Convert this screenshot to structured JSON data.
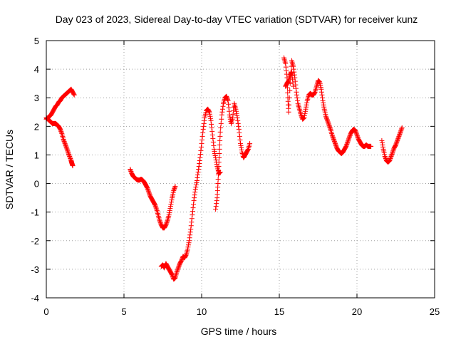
{
  "chart_data": {
    "type": "scatter",
    "title": "Day 023 of 2023, Sidereal Day-to-day VTEC variation (SDTVAR) for receiver kunz",
    "xlabel": "GPS time / hours",
    "ylabel": "SDTVAR / TECUs",
    "xlim": [
      0,
      25
    ],
    "ylim": [
      -4,
      5
    ],
    "xticks": [
      "0",
      "5",
      "10",
      "15",
      "20",
      "25"
    ],
    "yticks": [
      "-4",
      "-3",
      "-2",
      "-1",
      "0",
      "1",
      "2",
      "3",
      "4",
      "5"
    ],
    "grid": true,
    "marker": "plus",
    "color": "#ff0000",
    "segments": [
      [
        [
          0.0,
          2.25
        ],
        [
          0.1,
          2.3
        ],
        [
          0.2,
          2.35
        ],
        [
          0.3,
          2.4
        ],
        [
          0.4,
          2.5
        ],
        [
          0.5,
          2.6
        ],
        [
          0.6,
          2.7
        ],
        [
          0.7,
          2.75
        ],
        [
          0.8,
          2.85
        ],
        [
          0.9,
          2.9
        ],
        [
          1.0,
          3.0
        ],
        [
          1.1,
          3.05
        ],
        [
          1.2,
          3.1
        ],
        [
          1.3,
          3.15
        ],
        [
          1.4,
          3.2
        ],
        [
          1.5,
          3.25
        ],
        [
          1.6,
          3.3
        ],
        [
          1.7,
          3.2
        ],
        [
          1.8,
          3.1
        ]
      ],
      [
        [
          0.0,
          2.3
        ],
        [
          0.1,
          2.25
        ],
        [
          0.2,
          2.2
        ],
        [
          0.3,
          2.15
        ],
        [
          0.4,
          2.1
        ],
        [
          0.5,
          2.1
        ],
        [
          0.6,
          2.1
        ],
        [
          0.7,
          2.05
        ],
        [
          0.8,
          2.0
        ],
        [
          0.9,
          1.9
        ],
        [
          1.0,
          1.75
        ],
        [
          1.1,
          1.55
        ],
        [
          1.2,
          1.4
        ],
        [
          1.3,
          1.25
        ],
        [
          1.4,
          1.1
        ],
        [
          1.5,
          0.95
        ],
        [
          1.6,
          0.8
        ],
        [
          1.65,
          0.7
        ],
        [
          1.7,
          0.62
        ]
      ],
      [
        [
          5.4,
          0.5
        ],
        [
          5.5,
          0.35
        ],
        [
          5.6,
          0.25
        ],
        [
          5.7,
          0.2
        ],
        [
          5.8,
          0.15
        ],
        [
          5.9,
          0.12
        ],
        [
          6.0,
          0.12
        ],
        [
          6.1,
          0.15
        ],
        [
          6.2,
          0.12
        ],
        [
          6.3,
          0.05
        ],
        [
          6.4,
          -0.05
        ],
        [
          6.5,
          -0.15
        ],
        [
          6.6,
          -0.3
        ],
        [
          6.7,
          -0.45
        ],
        [
          6.8,
          -0.55
        ],
        [
          6.9,
          -0.65
        ],
        [
          7.0,
          -0.75
        ],
        [
          7.1,
          -0.9
        ],
        [
          7.2,
          -1.1
        ],
        [
          7.3,
          -1.3
        ],
        [
          7.4,
          -1.45
        ],
        [
          7.5,
          -1.55
        ],
        [
          7.6,
          -1.55
        ],
        [
          7.7,
          -1.45
        ],
        [
          7.8,
          -1.3
        ],
        [
          7.9,
          -1.1
        ],
        [
          8.0,
          -0.8
        ],
        [
          8.1,
          -0.5
        ],
        [
          8.2,
          -0.25
        ],
        [
          8.3,
          -0.1
        ]
      ],
      [
        [
          7.4,
          -2.9
        ],
        [
          7.5,
          -2.85
        ],
        [
          7.6,
          -2.95
        ],
        [
          7.7,
          -2.8
        ],
        [
          7.8,
          -2.9
        ],
        [
          7.9,
          -3.0
        ],
        [
          8.0,
          -3.1
        ],
        [
          8.1,
          -3.2
        ],
        [
          8.2,
          -3.35
        ],
        [
          8.3,
          -3.3
        ],
        [
          8.4,
          -3.1
        ],
        [
          8.5,
          -2.95
        ],
        [
          8.6,
          -2.8
        ],
        [
          8.7,
          -2.7
        ],
        [
          8.8,
          -2.55
        ],
        [
          8.9,
          -2.6
        ],
        [
          9.0,
          -2.5
        ],
        [
          9.1,
          -2.3
        ],
        [
          9.2,
          -2.0
        ],
        [
          9.3,
          -1.6
        ],
        [
          9.4,
          -1.1
        ],
        [
          9.5,
          -0.6
        ],
        [
          9.6,
          -0.2
        ],
        [
          9.7,
          0.1
        ],
        [
          9.8,
          0.5
        ],
        [
          9.9,
          0.9
        ],
        [
          10.0,
          1.4
        ],
        [
          10.1,
          1.9
        ],
        [
          10.2,
          2.3
        ],
        [
          10.3,
          2.55
        ],
        [
          10.4,
          2.6
        ],
        [
          10.5,
          2.5
        ],
        [
          10.6,
          2.2
        ],
        [
          10.7,
          1.7
        ],
        [
          10.8,
          1.2
        ],
        [
          10.9,
          0.9
        ],
        [
          11.0,
          0.6
        ],
        [
          11.1,
          0.35
        ],
        [
          11.2,
          0.4
        ]
      ],
      [
        [
          10.9,
          -0.9
        ],
        [
          11.0,
          -0.5
        ],
        [
          11.05,
          0.0
        ],
        [
          11.1,
          0.6
        ],
        [
          11.15,
          1.2
        ],
        [
          11.2,
          1.8
        ],
        [
          11.3,
          2.4
        ],
        [
          11.4,
          2.8
        ],
        [
          11.5,
          3.0
        ],
        [
          11.6,
          3.05
        ],
        [
          11.7,
          2.9
        ],
        [
          11.8,
          2.4
        ],
        [
          11.9,
          2.1
        ],
        [
          12.0,
          2.3
        ],
        [
          12.1,
          2.8
        ],
        [
          12.2,
          2.6
        ],
        [
          12.3,
          2.3
        ],
        [
          12.4,
          1.9
        ],
        [
          12.5,
          1.4
        ],
        [
          12.6,
          1.1
        ],
        [
          12.7,
          0.9
        ],
        [
          12.8,
          1.0
        ],
        [
          12.9,
          1.1
        ],
        [
          13.0,
          1.2
        ],
        [
          13.1,
          1.4
        ]
      ],
      [
        [
          15.3,
          4.4
        ],
        [
          15.4,
          4.2
        ],
        [
          15.5,
          3.7
        ],
        [
          15.55,
          3.0
        ],
        [
          15.6,
          2.5
        ],
        [
          15.7,
          3.5
        ],
        [
          15.8,
          4.3
        ],
        [
          15.9,
          4.1
        ],
        [
          16.0,
          3.7
        ],
        [
          16.1,
          3.2
        ],
        [
          16.2,
          2.8
        ],
        [
          16.3,
          2.6
        ],
        [
          16.4,
          2.4
        ],
        [
          16.5,
          2.25
        ],
        [
          16.6,
          2.3
        ],
        [
          16.7,
          2.6
        ],
        [
          16.8,
          2.9
        ],
        [
          16.9,
          3.1
        ],
        [
          17.0,
          3.15
        ],
        [
          17.1,
          3.1
        ],
        [
          17.2,
          3.1
        ],
        [
          17.3,
          3.2
        ],
        [
          17.4,
          3.4
        ],
        [
          17.5,
          3.6
        ],
        [
          17.6,
          3.55
        ],
        [
          17.7,
          3.3
        ],
        [
          17.8,
          2.9
        ],
        [
          17.9,
          2.6
        ],
        [
          18.0,
          2.35
        ],
        [
          18.1,
          2.2
        ],
        [
          18.2,
          2.05
        ],
        [
          18.3,
          1.9
        ],
        [
          18.4,
          1.7
        ],
        [
          18.5,
          1.55
        ],
        [
          18.6,
          1.4
        ],
        [
          18.7,
          1.25
        ],
        [
          18.8,
          1.15
        ],
        [
          18.9,
          1.1
        ],
        [
          19.0,
          1.05
        ],
        [
          19.1,
          1.1
        ],
        [
          19.2,
          1.2
        ],
        [
          19.3,
          1.3
        ],
        [
          19.4,
          1.45
        ],
        [
          19.5,
          1.6
        ],
        [
          19.6,
          1.75
        ],
        [
          19.7,
          1.85
        ],
        [
          19.8,
          1.9
        ],
        [
          19.9,
          1.85
        ],
        [
          20.0,
          1.7
        ],
        [
          20.1,
          1.55
        ],
        [
          20.2,
          1.45
        ],
        [
          20.3,
          1.35
        ],
        [
          20.4,
          1.3
        ],
        [
          20.5,
          1.3
        ],
        [
          20.6,
          1.35
        ],
        [
          20.7,
          1.3
        ],
        [
          20.8,
          1.3
        ],
        [
          20.9,
          1.3
        ]
      ],
      [
        [
          15.4,
          3.4
        ],
        [
          15.5,
          3.5
        ],
        [
          15.6,
          3.6
        ],
        [
          15.7,
          3.8
        ],
        [
          15.8,
          3.9
        ],
        [
          15.9,
          3.4
        ]
      ],
      [
        [
          21.6,
          1.5
        ],
        [
          21.7,
          1.2
        ],
        [
          21.8,
          0.95
        ],
        [
          21.9,
          0.8
        ],
        [
          22.0,
          0.75
        ],
        [
          22.1,
          0.8
        ],
        [
          22.2,
          0.95
        ],
        [
          22.3,
          1.1
        ],
        [
          22.4,
          1.25
        ],
        [
          22.5,
          1.35
        ],
        [
          22.6,
          1.5
        ],
        [
          22.7,
          1.65
        ],
        [
          22.8,
          1.8
        ],
        [
          22.9,
          1.95
        ]
      ]
    ]
  }
}
